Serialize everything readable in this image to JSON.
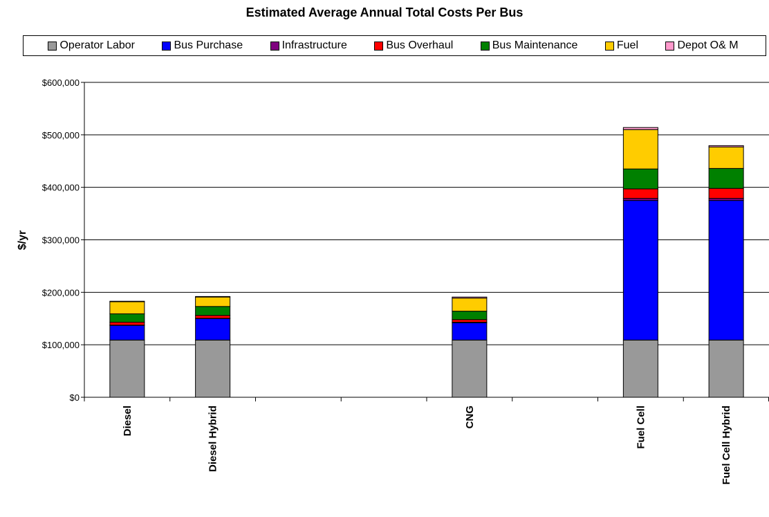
{
  "chart_data": {
    "type": "bar",
    "stacked": true,
    "title": "Estimated Average Annual Total Costs Per Bus",
    "xlabel": "",
    "ylabel": "$/yr",
    "ylim": [
      0,
      600000
    ],
    "y_ticks": [
      0,
      100000,
      200000,
      300000,
      400000,
      500000,
      600000
    ],
    "y_tick_labels": [
      "$0",
      "$100,000",
      "$200,000",
      "$300,000",
      "$400,000",
      "$500,000",
      "$600,000"
    ],
    "grid": true,
    "legend_position": "top",
    "categories": [
      "Diesel",
      "Diesel Hybrid",
      "",
      "",
      "CNG",
      "",
      "Fuel Cell",
      "Fuel Cell Hybrid"
    ],
    "series": [
      {
        "name": "Operator Labor",
        "color": "#999999",
        "values": [
          109000,
          109000,
          0,
          0,
          109000,
          0,
          109000,
          109000
        ]
      },
      {
        "name": "Bus Purchase",
        "color": "#0000ff",
        "values": [
          28000,
          41000,
          0,
          0,
          33000,
          0,
          266000,
          266000
        ]
      },
      {
        "name": "Infrastructure",
        "color": "#7f007f",
        "values": [
          500,
          500,
          0,
          0,
          1000,
          0,
          4000,
          4000
        ]
      },
      {
        "name": "Bus Overhaul",
        "color": "#ff0000",
        "values": [
          5500,
          5500,
          0,
          0,
          5000,
          0,
          18000,
          19000
        ]
      },
      {
        "name": "Bus Maintenance",
        "color": "#008000",
        "values": [
          16000,
          17000,
          0,
          0,
          16000,
          0,
          38000,
          38000
        ]
      },
      {
        "name": "Fuel",
        "color": "#ffcc00",
        "values": [
          23000,
          18000,
          0,
          0,
          25000,
          0,
          75000,
          41000
        ]
      },
      {
        "name": "Depot O& M",
        "color": "#ff99cc",
        "values": [
          1000,
          1000,
          0,
          0,
          2000,
          0,
          4000,
          2500
        ]
      }
    ]
  }
}
